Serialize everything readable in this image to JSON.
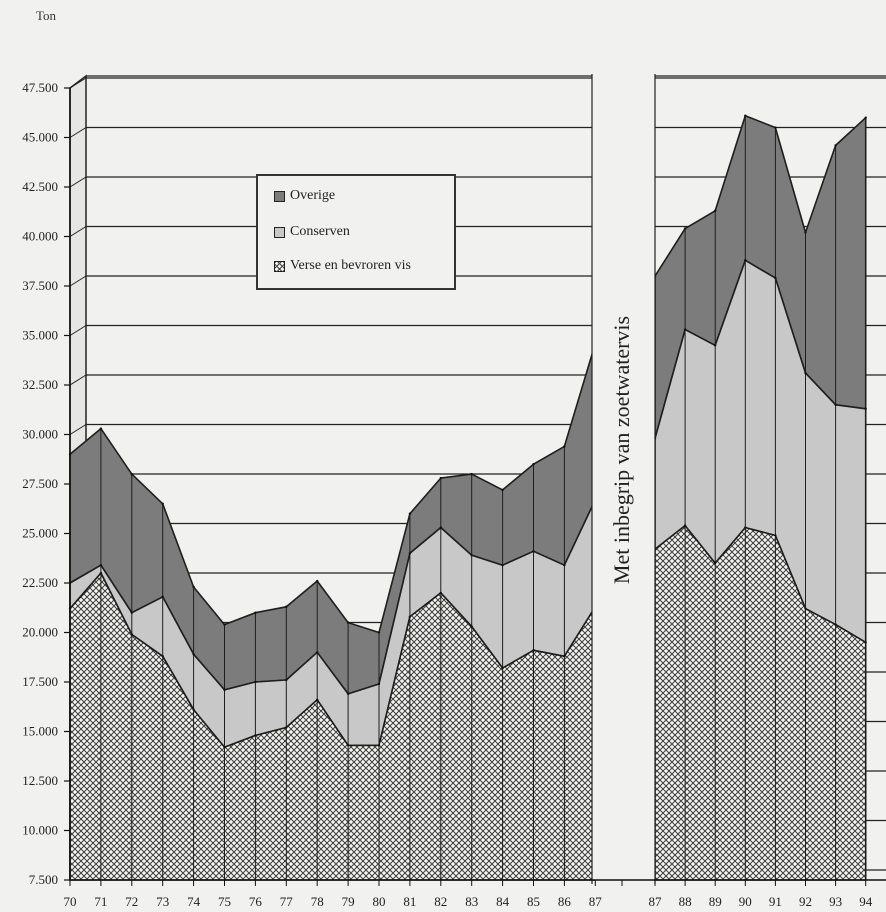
{
  "chart_data": {
    "type": "area",
    "stacked": true,
    "ylabel": "Ton",
    "ylim": [
      7500,
      47500
    ],
    "yticks": [
      "7.500",
      "10.000",
      "12.500",
      "15.000",
      "17.500",
      "20.000",
      "22.500",
      "25.000",
      "27.500",
      "30.000",
      "32.500",
      "35.000",
      "37.500",
      "40.000",
      "42.500",
      "45.000",
      "47.500"
    ],
    "grid": "horizontal",
    "legend_position": "top-left-center",
    "break_label": "Met inbegrip van zoetwatervis",
    "segments": [
      {
        "x": [
          "70",
          "71",
          "72",
          "73",
          "74",
          "75",
          "76",
          "77",
          "78",
          "79",
          "80",
          "81",
          "82",
          "83",
          "84",
          "85",
          "86",
          "87"
        ],
        "series": [
          {
            "name": "Verse en bevroren vis",
            "values": [
              21200,
              23000,
              19900,
              18800,
              16100,
              14200,
              14800,
              15200,
              16600,
              14300,
              14300,
              20800,
              22000,
              20300,
              18200,
              19100,
              18800,
              21300
            ]
          },
          {
            "name": "Conserven",
            "values": [
              22500,
              23400,
              21000,
              21800,
              18900,
              17100,
              17500,
              17600,
              19000,
              16900,
              17400,
              24000,
              25300,
              23900,
              23400,
              24100,
              23400,
              26700
            ]
          },
          {
            "name": "Overige",
            "values": [
              29000,
              30300,
              28000,
              26500,
              22300,
              20400,
              21000,
              21300,
              22600,
              20500,
              20000,
              26000,
              27800,
              28000,
              27200,
              28500,
              29400,
              34600
            ]
          }
        ]
      },
      {
        "x": [
          "87",
          "88",
          "89",
          "90",
          "91",
          "92",
          "93",
          "94"
        ],
        "series": [
          {
            "name": "Verse en bevroren vis",
            "values": [
              24200,
              25400,
              23500,
              25300,
              24900,
              21200,
              20400,
              19500
            ]
          },
          {
            "name": "Conserven",
            "values": [
              29800,
              35300,
              34500,
              38800,
              37900,
              33100,
              31500,
              31300
            ]
          },
          {
            "name": "Overige",
            "values": [
              38000,
              40400,
              41300,
              46100,
              45500,
              40200,
              44600,
              46000
            ]
          }
        ]
      }
    ]
  }
}
